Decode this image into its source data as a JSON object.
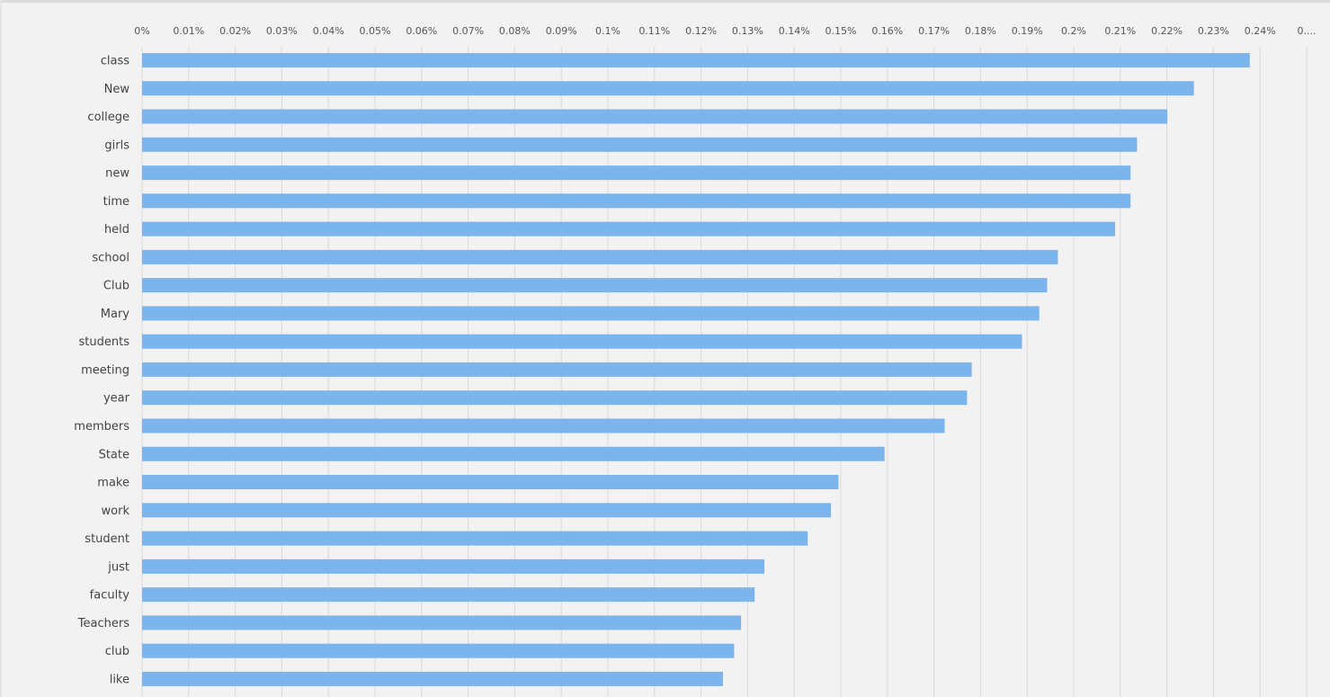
{
  "chart_data": {
    "type": "bar",
    "orientation": "horizontal",
    "categories": [
      "class",
      "New",
      "college",
      "girls",
      "new",
      "time",
      "held",
      "school",
      "Club",
      "Mary",
      "students",
      "meeting",
      "year",
      "members",
      "State",
      "make",
      "work",
      "student",
      "just",
      "faculty",
      "Teachers",
      "club",
      "like"
    ],
    "values": [
      0.2378,
      0.2258,
      0.2201,
      0.2136,
      0.2122,
      0.2122,
      0.2089,
      0.1966,
      0.1943,
      0.1926,
      0.1889,
      0.1781,
      0.1771,
      0.1723,
      0.1594,
      0.1495,
      0.1479,
      0.1429,
      0.1336,
      0.1315,
      0.1286,
      0.1271,
      0.1247
    ],
    "x_tick_labels": [
      "0%",
      "0.01%",
      "0.02%",
      "0.03%",
      "0.04%",
      "0.05%",
      "0.06%",
      "0.07%",
      "0.08%",
      "0.09%",
      "0.1%",
      "0.11%",
      "0.12%",
      "0.13%",
      "0.14%",
      "0.15%",
      "0.16%",
      "0.17%",
      "0.18%",
      "0.19%",
      "0.2%",
      "0.21%",
      "0.22%",
      "0.23%",
      "0.24%",
      "0...."
    ],
    "xlim": [
      0,
      0.25
    ],
    "unit": "%",
    "grid": true,
    "bar_color": "#7cb4ec",
    "grid_color": "#d9d9d9",
    "background": "#f2f2f2"
  }
}
